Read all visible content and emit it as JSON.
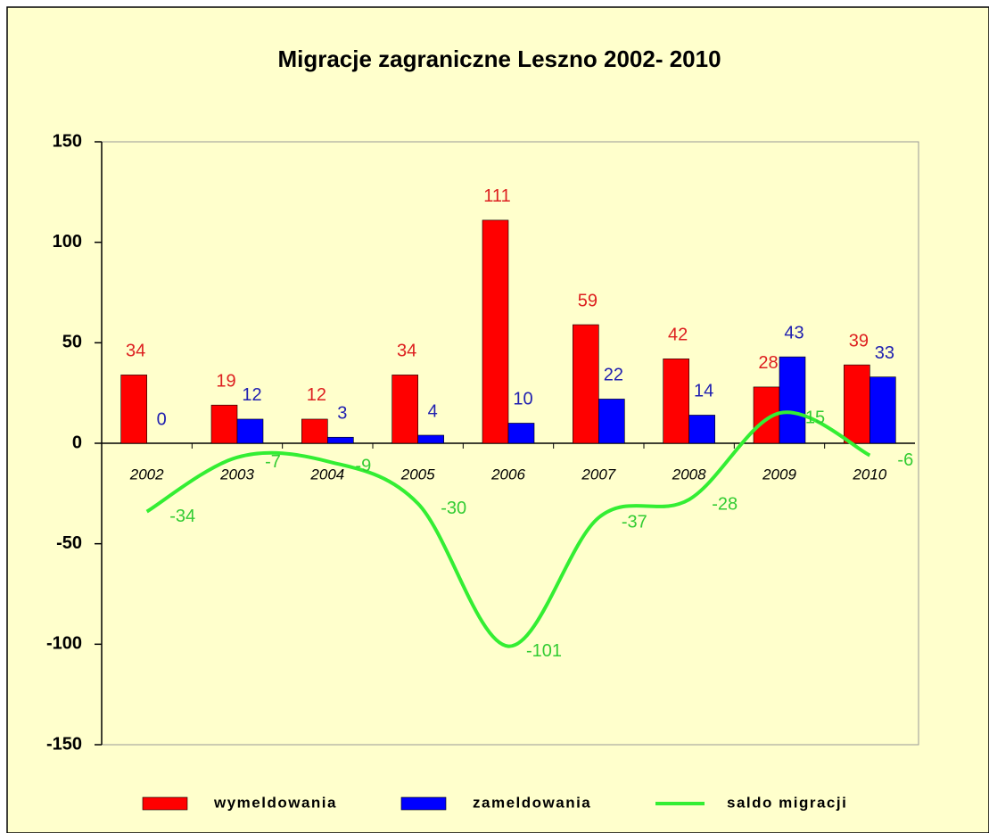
{
  "chart_data": {
    "type": "bar",
    "title": "Migracje zagraniczne Leszno 2002- 2010",
    "categories": [
      "2002",
      "2003",
      "2004",
      "2005",
      "2006",
      "2007",
      "2008",
      "2009",
      "2010"
    ],
    "series": [
      {
        "name": "wymeldowania",
        "type": "bar",
        "color": "#ff0000",
        "label_color": "#dd2020",
        "values": [
          34,
          19,
          12,
          34,
          111,
          59,
          42,
          28,
          39
        ]
      },
      {
        "name": "zameldowania",
        "type": "bar",
        "color": "#0000ff",
        "label_color": "#2020b0",
        "values": [
          0,
          12,
          3,
          4,
          10,
          22,
          14,
          43,
          33
        ]
      },
      {
        "name": "saldo migracji",
        "type": "line",
        "color": "#33ee33",
        "label_color": "#33cc33",
        "values": [
          -34,
          -7,
          -9,
          -30,
          -101,
          -37,
          -28,
          15,
          -6
        ]
      }
    ],
    "ylim": [
      -150,
      150
    ],
    "yticks": [
      -150,
      -100,
      -50,
      0,
      50,
      100,
      150
    ],
    "grid": false,
    "legend": "bottom"
  }
}
